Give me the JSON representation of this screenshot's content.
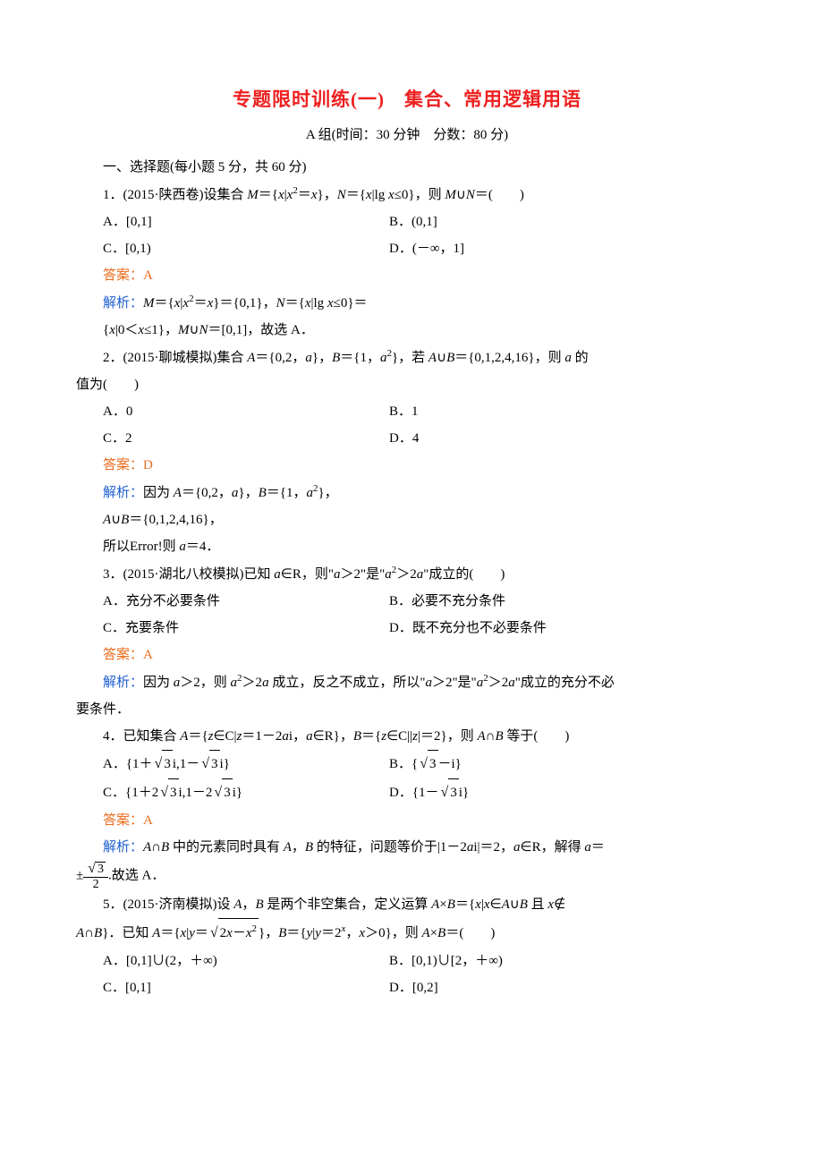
{
  "title": "专题限时训练(一)　集合、常用逻辑用语",
  "subtitle": "A 组(时间：30 分钟　分数：80 分)",
  "section_heading": "一、选择题(每小题 5 分，共 60 分)",
  "colors": {
    "title_color": "#ee2020",
    "answer_color": "#ea6a1a",
    "explain_label_color": "#2060d0",
    "text_color": "#000000",
    "background_color": "#ffffff"
  },
  "typography": {
    "title_fontsize": 21,
    "body_fontsize": 15,
    "sup_fontsize": 11,
    "line_height": 2.0,
    "font_family": "SimSun"
  },
  "q1": {
    "stem_prefix": "1．(2015·陕西卷)设集合 ",
    "stem_html": "<span class='italic'>M</span>＝{<span class='italic'>x</span>|<span class='italic'>x</span><span class='sup'>2</span>＝<span class='italic'>x</span>}，<span class='italic'>N</span>＝{<span class='italic'>x</span>|lg&nbsp;<span class='italic'>x</span>≤0}，则 <span class='italic'>M</span>∪<span class='italic'>N</span>＝(　　)",
    "A": "A．[0,1]",
    "B": "B．(0,1]",
    "C": "C．[0,1)",
    "D": "D．(－∞，1]",
    "answer": "答案：A",
    "explain_label": "解析：",
    "explain_html": "<span class='italic'>M</span>＝{<span class='italic'>x</span>|<span class='italic'>x</span><span class='sup'>2</span>＝<span class='italic'>x</span>}＝{0,1}，<span class='italic'>N</span>＝{<span class='italic'>x</span>|lg&nbsp;<span class='italic'>x</span>≤0}＝",
    "explain2_html": "{<span class='italic'>x</span>|0＜<span class='italic'>x</span>≤1}，<span class='italic'>M</span>∪<span class='italic'>N</span>＝[0,1]，故选 A．"
  },
  "q2": {
    "stem_prefix": "2．(2015·聊城模拟)集合 ",
    "stem_html": "<span class='italic'>A</span>＝{0,2，<span class='italic'>a</span>}，<span class='italic'>B</span>＝{1，<span class='italic'>a</span><span class='sup'>2</span>}，若 <span class='italic'>A</span>∪<span class='italic'>B</span>＝{0,1,2,4,16}，则 <span class='italic'>a</span> 的",
    "stem_tail": "值为(　　)",
    "A": "A．0",
    "B": "B．1",
    "C": "C．2",
    "D": "D．4",
    "answer": "答案：D",
    "explain_label": "解析：",
    "explain_html": "因为 <span class='italic'>A</span>＝{0,2，<span class='italic'>a</span>}，<span class='italic'>B</span>＝{1，<span class='italic'>a</span><span class='sup'>2</span>}，",
    "explain2_html": "<span class='italic'>A</span>∪<span class='italic'>B</span>＝{0,1,2,4,16}，",
    "explain3_html": "所以Error!则 <span class='italic'>a</span>＝4．"
  },
  "q3": {
    "stem_prefix": "3．(2015·湖北八校模拟)已知 ",
    "stem_html": "<span class='italic'>a</span>∈R，则\"<span class='italic'>a</span>＞2\"是\"<span class='italic'>a</span><span class='sup'>2</span>＞2<span class='italic'>a</span>\"成立的(　　)",
    "A": "A．充分不必要条件",
    "B": "B．必要不充分条件",
    "C": "C．充要条件",
    "D": "D．既不充分也不必要条件",
    "answer": "答案：A",
    "explain_label": "解析：",
    "explain_html": "因为 <span class='italic'>a</span>＞2，则 <span class='italic'>a</span><span class='sup'>2</span>＞2<span class='italic'>a</span> 成立，反之不成立，所以\"<span class='italic'>a</span>＞2\"是\"<span class='italic'>a</span><span class='sup'>2</span>＞2<span class='italic'>a</span>\"成立的充分不必",
    "explain_tail": "要条件．"
  },
  "q4": {
    "stem_prefix": "4．已知集合 ",
    "stem_html": "<span class='italic'>A</span>＝{<span class='italic'>z</span>∈C|<span class='italic'>z</span>＝1－2<span class='italic'>a</span>i，<span class='italic'>a</span>∈R}，<span class='italic'>B</span>＝{<span class='italic'>z</span>∈C||<span class='italic'>z</span>|＝2}，则 <span class='italic'>A</span>∩<span class='italic'>B</span> 等于(　　)",
    "A_html": "A．{1＋<span class='sqrt'><span class='sqrt-body'>3</span></span>i,1－<span class='sqrt'><span class='sqrt-body'>3</span></span>i}",
    "B_html": "B．{<span class='sqrt'><span class='sqrt-body'>3</span></span>－i}",
    "C_html": "C．{1＋2<span class='sqrt'><span class='sqrt-body'>3</span></span>i,1－2<span class='sqrt'><span class='sqrt-body'>3</span></span>i}",
    "D_html": "D．{1－<span class='sqrt'><span class='sqrt-body'>3</span></span>i}",
    "answer": "答案：A",
    "explain_label": "解析：",
    "explain_html": "<span class='italic'>A</span>∩<span class='italic'>B</span> 中的元素同时具有 <span class='italic'>A</span>，<span class='italic'>B</span> 的特征，问题等价于|1－2<span class='italic'>a</span>i|＝2，<span class='italic'>a</span>∈R，解得 <span class='italic'>a</span>＝",
    "explain2_html": "±<span class='frac'><span class='num'><span class='sqrt'><span class='sqrt-body'>3</span></span></span><span class='den'>2</span></span>.故选 A．"
  },
  "q5": {
    "stem_prefix": "5．(2015·济南模拟)设 ",
    "stem_html": "<span class='italic'>A</span>，<span class='italic'>B</span> 是两个非空集合，定义运算 <span class='italic'>A</span>×<span class='italic'>B</span>＝{<span class='italic'>x</span>|<span class='italic'>x</span>∈<span class='italic'>A</span>∪<span class='italic'>B</span> 且 <span class='italic'>x</span>∉",
    "stem2_html": "<span class='italic'>A</span>∩<span class='italic'>B</span>}．已知 <span class='italic'>A</span>＝{<span class='italic'>x</span>|<span class='italic'>y</span>＝<span class='sqrt'><span class='sqrt-body'>2<span class='italic'>x</span>－<span class='italic'>x</span><span class='sup'>2</span></span></span>}，<span class='italic'>B</span>＝{<span class='italic'>y</span>|<span class='italic'>y</span>＝2<span class='sup italic'>x</span>，<span class='italic'>x</span>＞0}，则 <span class='italic'>A</span>×<span class='italic'>B</span>＝(　　)",
    "A": "A．[0,1]∪(2，＋∞)",
    "B": "B．[0,1)∪[2，＋∞)",
    "C": "C．[0,1]",
    "D": "D．[0,2]"
  }
}
